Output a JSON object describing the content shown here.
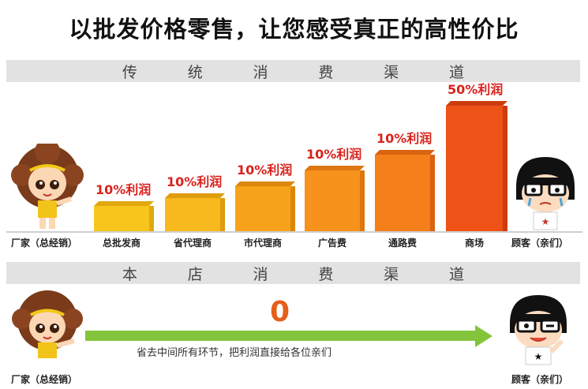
{
  "title": "以批发价格零售，让您感受真正的高性价比",
  "section_traditional": {
    "chars": [
      "传",
      "统",
      "消",
      "费",
      "渠",
      "道"
    ]
  },
  "section_store": {
    "chars": [
      "本",
      "店",
      "消",
      "费",
      "渠",
      "道"
    ]
  },
  "chart_data": {
    "type": "bar",
    "categories": [
      "总批发商",
      "省代理商",
      "市代理商",
      "广告费",
      "通路费",
      "商场"
    ],
    "value_labels": [
      "10%利润",
      "10%利润",
      "10%利润",
      "10%利润",
      "10%利润",
      "50%利润"
    ]
  },
  "labels": {
    "manufacturer": "厂家（总经销）",
    "customer": "顾客（亲们）"
  },
  "store": {
    "zero_value": "0",
    "arrow_text": "省去中间所有环节，把利润直接给各位亲们"
  },
  "colors": {
    "orange_light": "#f7c51c",
    "orange_mid": "#f6a21a",
    "orange_deep": "#f47f1b",
    "red_orange": "#ee5217",
    "profit_text": "#d9221c",
    "arrow_green": "#84c43c"
  }
}
